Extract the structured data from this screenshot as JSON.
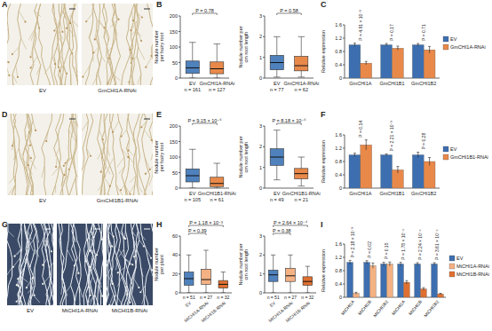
{
  "images": [
    {
      "panel": "A",
      "labels": [
        "EV",
        "GmCHI1A-RNAi"
      ]
    },
    {
      "panel": "D",
      "labels": [
        "EV",
        "GmCHI1B1-RNAi"
      ]
    },
    {
      "panel": "G",
      "labels": [
        "EV",
        "MtCHI1A-RNAi",
        "MtCHI1B-RNAi"
      ]
    }
  ],
  "chart_data": [
    {
      "panel": "B",
      "type": "box",
      "y_label": "Nodule number per hairy root",
      "categories": [
        "EV",
        "GmCHI1A-RNAi"
      ],
      "n_labels": [
        "n = 161",
        "n = 127"
      ],
      "colors": [
        "#4f81bd",
        "#e8894a"
      ],
      "ylim": [
        0,
        200
      ],
      "yticks": [
        0,
        50,
        100,
        150,
        200
      ],
      "boxes": [
        {
          "min": 0,
          "q1": 15,
          "median": 33,
          "q3": 55,
          "max": 115
        },
        {
          "min": 0,
          "q1": 14,
          "median": 30,
          "q3": 52,
          "max": 110
        }
      ],
      "p_values": [
        null,
        "P = 0.78"
      ]
    },
    {
      "type": "box",
      "y_label": "Nodule number per cm root length",
      "categories": [
        "EV",
        "GmCHI1A-RNAi"
      ],
      "n_labels": [
        "n = 77",
        "n = 62"
      ],
      "colors": [
        "#4f81bd",
        "#e8894a"
      ],
      "ylim": [
        0,
        3
      ],
      "yticks": [
        0,
        1,
        2,
        3
      ],
      "boxes": [
        {
          "min": 0.05,
          "q1": 0.4,
          "median": 0.75,
          "q3": 1.1,
          "max": 2.0
        },
        {
          "min": 0.05,
          "q1": 0.35,
          "median": 0.6,
          "q3": 1.05,
          "max": 2.0
        }
      ],
      "p_values": [
        null,
        "P = 0.58"
      ]
    },
    {
      "panel": "C",
      "type": "bar",
      "y_label": "Relative expression",
      "categories": [
        "GmCHI1A",
        "GmCHI1B1",
        "GmCHI1B2"
      ],
      "series": [
        {
          "name": "EV",
          "color": "#3d6fb0",
          "values": [
            1,
            1,
            1
          ],
          "errors": [
            0.05,
            0.04,
            0.04
          ]
        },
        {
          "name": "GmCHI1A-RNAi",
          "color": "#e8894a",
          "values": [
            0.45,
            0.9,
            0.85
          ],
          "errors": [
            0.05,
            0.06,
            0.1
          ]
        }
      ],
      "p_values": [
        "P = 4.91 × 10⁻³",
        "P = 0.17",
        "P = 0.71"
      ],
      "ylim": [
        0,
        1.6
      ],
      "yticks": [
        0,
        0.4,
        0.8,
        1.2,
        1.6
      ],
      "legend": "right"
    },
    {
      "panel": "E",
      "type": "box",
      "y_label": "Nodule number per hairy root",
      "categories": [
        "EV",
        "GmCHI1B1-RNAi"
      ],
      "n_labels": [
        "n = 105",
        "n = 61"
      ],
      "colors": [
        "#4f81bd",
        "#e8894a"
      ],
      "ylim": [
        0,
        200
      ],
      "yticks": [
        0,
        50,
        100,
        150,
        200
      ],
      "boxes": [
        {
          "min": 0,
          "q1": 20,
          "median": 40,
          "q3": 62,
          "max": 125
        },
        {
          "min": 0,
          "q1": 5,
          "median": 15,
          "q3": 35,
          "max": 80
        }
      ],
      "p_values": [
        null,
        "P = 9.15 × 10⁻⁶"
      ]
    },
    {
      "type": "box",
      "y_label": "Nodule number per cm root length",
      "categories": [
        "EV",
        "GmCHI1B1-RNAi"
      ],
      "n_labels": [
        "n = 49",
        "n = 21"
      ],
      "colors": [
        "#4f81bd",
        "#e8894a"
      ],
      "ylim": [
        0,
        3
      ],
      "yticks": [
        0,
        1,
        2,
        3
      ],
      "boxes": [
        {
          "min": 0.4,
          "q1": 1.1,
          "median": 1.5,
          "q3": 1.9,
          "max": 2.8
        },
        {
          "min": 0.1,
          "q1": 0.45,
          "median": 0.7,
          "q3": 0.95,
          "max": 1.5
        }
      ],
      "p_values": [
        null,
        "P = 8.18 × 10⁻⁶"
      ]
    },
    {
      "panel": "F",
      "type": "bar",
      "y_label": "Relative expression",
      "categories": [
        "GmCHI1A",
        "GmCHI1B1",
        "GmCHI1B2"
      ],
      "series": [
        {
          "name": "EV",
          "color": "#3d6fb0",
          "values": [
            1,
            1,
            1
          ],
          "errors": [
            0.05,
            0.03,
            0.08
          ]
        },
        {
          "name": "GmCHI1B1-RNAi",
          "color": "#e8894a",
          "values": [
            1.3,
            0.55,
            0.8
          ],
          "errors": [
            0.15,
            0.1,
            0.12
          ]
        }
      ],
      "p_values": [
        "P = 0.14",
        "P = 2.21 × 10⁻³",
        "P = 0.28"
      ],
      "ylim": [
        0,
        1.6
      ],
      "yticks": [
        0,
        0.4,
        0.8,
        1.2,
        1.6
      ],
      "legend": "right"
    },
    {
      "panel": "H",
      "type": "box",
      "y_label": "Nodule number per plant",
      "categories": [
        "EV",
        "MtCHI1A-RNAi",
        "MtCHI1B-RNAi"
      ],
      "n_labels": [
        "n = 51",
        "n = 27",
        "n = 32"
      ],
      "colors": [
        "#4f81bd",
        "#f4b183",
        "#e07030"
      ],
      "ylim": [
        0,
        60
      ],
      "yticks": [
        0,
        20,
        40,
        60
      ],
      "boxes": [
        {
          "min": 0,
          "q1": 8,
          "median": 15,
          "q3": 22,
          "max": 40
        },
        {
          "min": 0,
          "q1": 9,
          "median": 14,
          "q3": 25,
          "max": 45
        },
        {
          "min": 0,
          "q1": 5,
          "median": 9,
          "q3": 13,
          "max": 22
        }
      ],
      "p_values": [
        null,
        "P = 0.39",
        "P = 1.18 × 10⁻³"
      ]
    },
    {
      "type": "box",
      "y_label": "Nodule number per cm root length",
      "categories": [
        "EV",
        "MtCHI1A-RNAi",
        "MtCHI1B-RNAi"
      ],
      "n_labels": [
        "n = 51",
        "n = 27",
        "n = 32"
      ],
      "colors": [
        "#4f81bd",
        "#f4b183",
        "#e07030"
      ],
      "ylim": [
        0,
        3
      ],
      "yticks": [
        0,
        1,
        2,
        3
      ],
      "boxes": [
        {
          "min": 0,
          "q1": 0.6,
          "median": 0.95,
          "q3": 1.2,
          "max": 2.0
        },
        {
          "min": 0,
          "q1": 0.6,
          "median": 0.9,
          "q3": 1.3,
          "max": 2.0
        },
        {
          "min": 0,
          "q1": 0.4,
          "median": 0.6,
          "q3": 0.85,
          "max": 1.4
        }
      ],
      "p_values": [
        null,
        "P = 0.38",
        "P = 2.64 × 10⁻⁴"
      ]
    },
    {
      "panel": "I",
      "type": "bar",
      "y_label": "Relative expression",
      "categories": [
        "MtCHI1A",
        "MtCHI1B",
        "MtCHI1B2",
        "MtCHI1A",
        "MtCHI1B",
        "MtCHI1B2"
      ],
      "series": [
        {
          "name": "EV",
          "color": "#3d6fb0",
          "values": [
            1.05,
            1.05,
            1.0,
            1.0,
            1.0,
            1.0
          ],
          "errors": [
            0.06,
            0.05,
            0.05,
            0.05,
            0.04,
            0.04
          ]
        },
        {
          "name": "MtCHI1A-RNAi",
          "color": "#f4b183",
          "values": [
            0.12,
            0.95,
            1.0,
            null,
            null,
            null
          ],
          "errors": [
            0.03,
            0.08,
            0.06,
            null,
            null,
            null
          ]
        },
        {
          "name": "MtCHI1B-RNAi",
          "color": "#e07030",
          "values": [
            null,
            null,
            null,
            0.45,
            0.25,
            0.1
          ],
          "errors": [
            null,
            null,
            null,
            0.05,
            0.04,
            0.02
          ]
        }
      ],
      "p_values": [
        "P = 2.18 × 10⁻³",
        "P = 0.02",
        "P = 0.15",
        "P = 1.78 × 10⁻⁵",
        "P = 2.24 × 10⁻⁵",
        "P = 3.61 × 10⁻⁵"
      ],
      "ylim": [
        0,
        1.6
      ],
      "yticks": [
        0,
        0.4,
        0.8,
        1.2,
        1.6
      ],
      "legend": "right"
    }
  ]
}
